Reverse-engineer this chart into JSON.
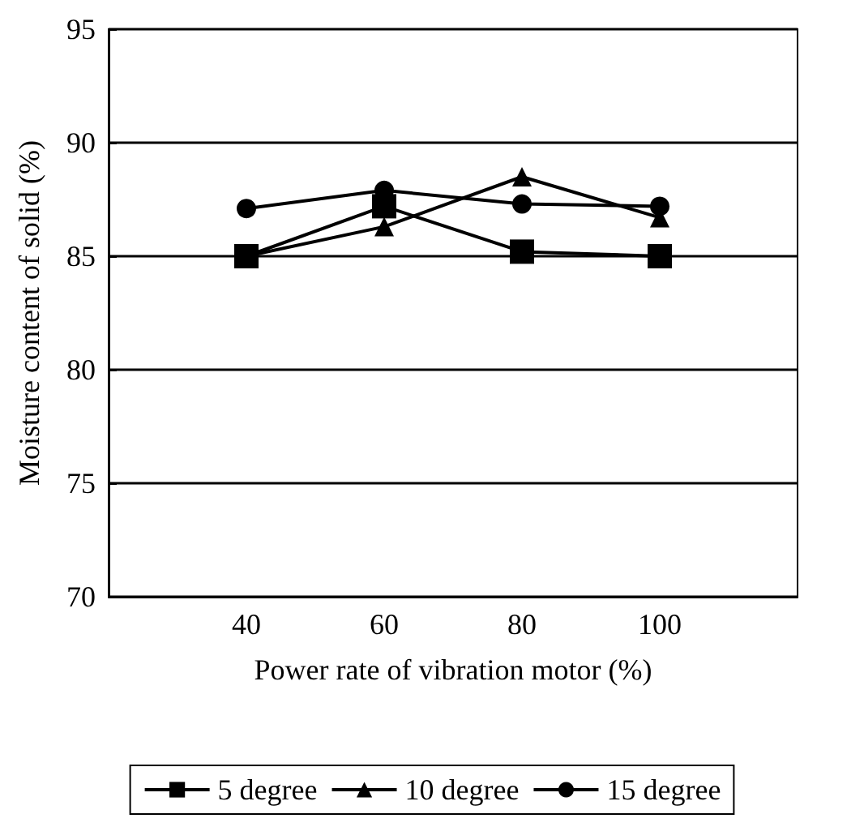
{
  "chart_data": {
    "type": "line",
    "xlabel": "Power rate of vibration motor (%)",
    "ylabel": "Moisture content of solid (%)",
    "x": [
      40,
      60,
      80,
      100
    ],
    "xlim": [
      20,
      120
    ],
    "xticks": [
      40,
      60,
      80,
      100
    ],
    "ylim": [
      70,
      95
    ],
    "yticks": [
      70,
      75,
      80,
      85,
      90,
      95
    ],
    "grid": "y",
    "legend": "bottom",
    "line_style": "solid",
    "series": [
      {
        "name": "5 degree",
        "color": "#000000",
        "marker": "square",
        "values": [
          85,
          87.2,
          85.2,
          85
        ]
      },
      {
        "name": "10 degree",
        "color": "#000000",
        "marker": "triangle",
        "values": [
          85,
          86.3,
          88.5,
          86.7
        ]
      },
      {
        "name": "15 degree",
        "color": "#000000",
        "marker": "circle",
        "values": [
          87.1,
          87.9,
          87.3,
          87.2
        ]
      }
    ]
  }
}
